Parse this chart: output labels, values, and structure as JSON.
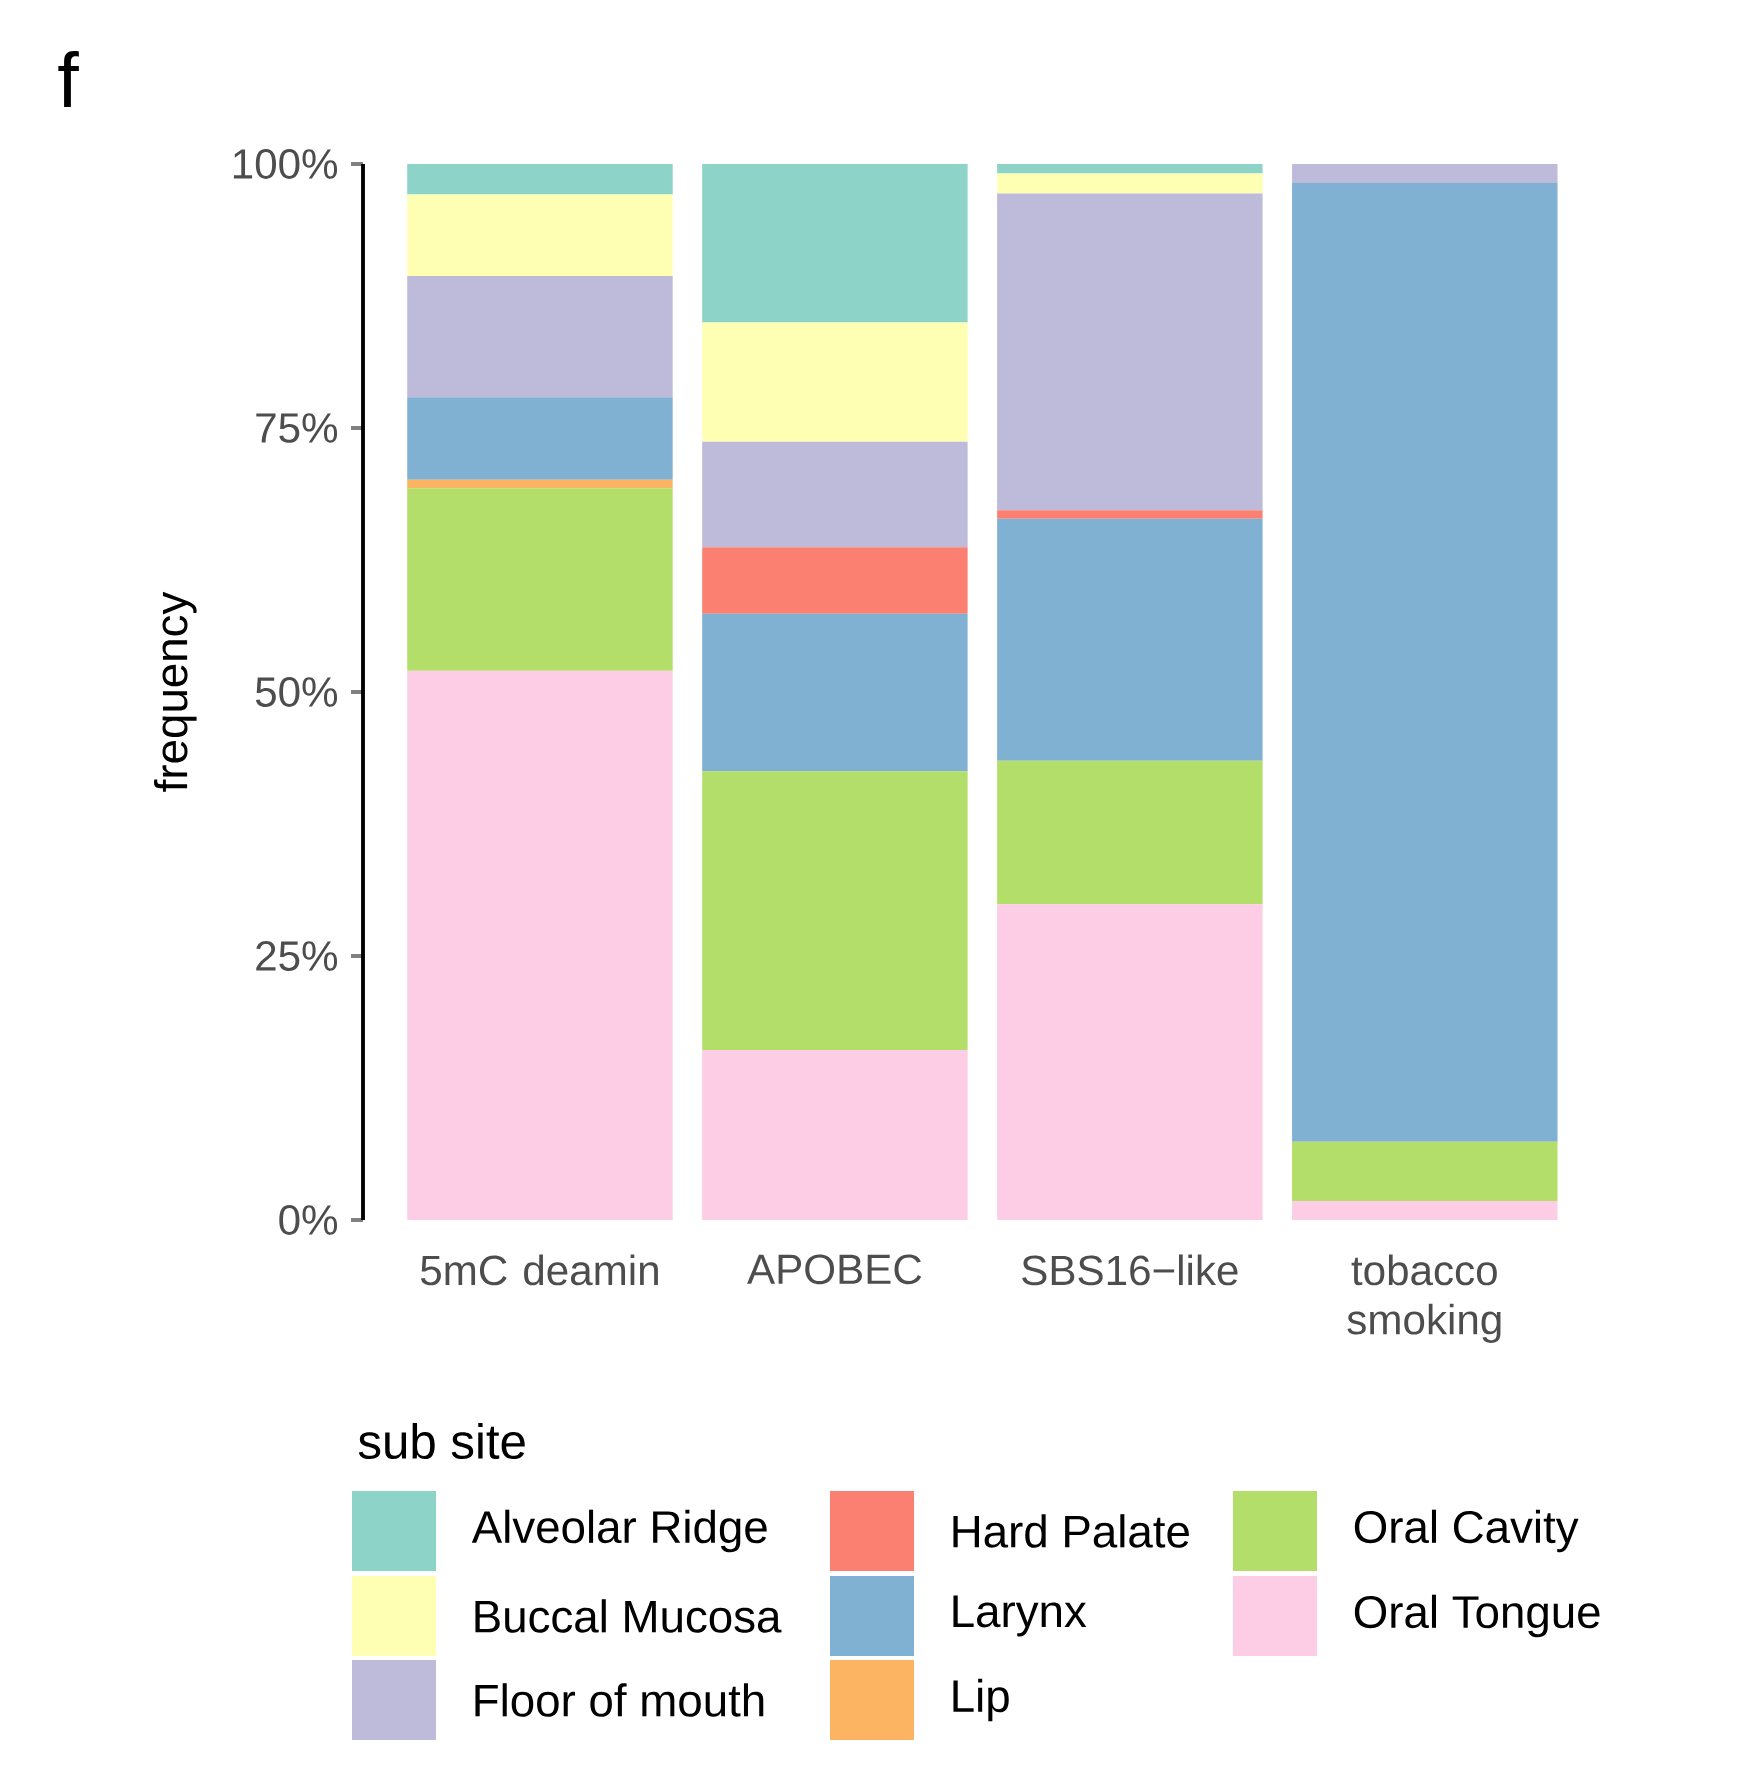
{
  "chart_data": {
    "type": "bar",
    "title": "f",
    "ylabel": "frequency",
    "legend_title": "sub site",
    "categories": [
      "5mC deamin",
      "APOBEC",
      "SBS16−like",
      "tobacco smoking"
    ],
    "stacked": true,
    "ylim": [
      0,
      100
    ],
    "yticks": [
      {
        "value": 0,
        "label": "0%"
      },
      {
        "value": 25,
        "label": "25%"
      },
      {
        "value": 50,
        "label": "50%"
      },
      {
        "value": 75,
        "label": "75%"
      },
      {
        "value": 100,
        "label": "100%"
      }
    ],
    "legend": "bottom",
    "series": [
      {
        "name": "Oral Tongue",
        "color": "#fccde5",
        "values": [
          52,
          16.1,
          29.9,
          1.8
        ]
      },
      {
        "name": "Oral Cavity",
        "color": "#b3de69",
        "values": [
          17.3,
          26.4,
          13.6,
          5.6
        ]
      },
      {
        "name": "Lip",
        "color": "#fdb462",
        "values": [
          0.8,
          0,
          0,
          0
        ]
      },
      {
        "name": "Larynx",
        "color": "#80b1d3",
        "values": [
          7.8,
          14.9,
          22.9,
          90.8
        ]
      },
      {
        "name": "Hard Palate",
        "color": "#fb8072",
        "values": [
          0,
          6.3,
          0.8,
          0
        ]
      },
      {
        "name": "Floor of mouth",
        "color": "#bebada",
        "values": [
          11.5,
          10,
          30,
          1.8
        ]
      },
      {
        "name": "Buccal Mucosa",
        "color": "#ffffb3",
        "values": [
          7.7,
          11.3,
          1.9,
          0
        ]
      },
      {
        "name": "Alveolar Ridge",
        "color": "#8dd3c7",
        "values": [
          2.9,
          15,
          0.9,
          0
        ]
      }
    ]
  }
}
